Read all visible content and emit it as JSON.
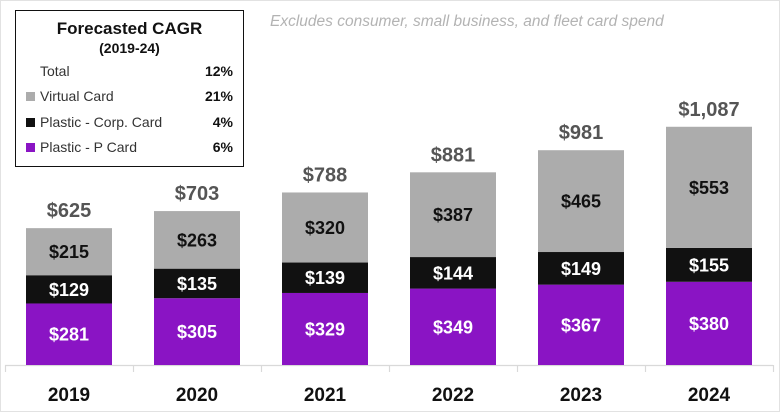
{
  "chart_data": {
    "type": "bar",
    "stacked": true,
    "title": "",
    "note": "Excludes consumer, small business, and fleet card spend",
    "xlabel": "",
    "ylabel": "",
    "categories": [
      "2019",
      "2020",
      "2021",
      "2022",
      "2023",
      "2024"
    ],
    "series": [
      {
        "name": "Plastic - P Card",
        "color": "#8a14c4",
        "label_color": "#ffffff",
        "values": [
          281,
          305,
          329,
          349,
          367,
          380
        ]
      },
      {
        "name": "Plastic - Corp. Card",
        "color": "#111111",
        "label_color": "#ffffff",
        "values": [
          129,
          135,
          139,
          144,
          149,
          155
        ]
      },
      {
        "name": "Virtual Card",
        "color": "#acacac",
        "label_color": "#111111",
        "values": [
          215,
          263,
          320,
          387,
          465,
          553
        ]
      }
    ],
    "totals": [
      "$625",
      "$703",
      "$788",
      "$881",
      "$981",
      "$1,087"
    ],
    "value_prefix": "$",
    "ylim": [
      0,
      1087
    ],
    "grid": false,
    "legend": {
      "placement": "top-left",
      "title": "Forecasted CAGR",
      "subtitle": "(2019-24)",
      "rows": [
        {
          "label": "Total",
          "value": "12%",
          "color": null
        },
        {
          "label": "Virtual Card",
          "value": "21%",
          "color": "#acacac"
        },
        {
          "label": "Plastic - Corp. Card",
          "value": "4%",
          "color": "#111111"
        },
        {
          "label": "Plastic - P Card",
          "value": "6%",
          "color": "#8a14c4"
        }
      ]
    }
  }
}
